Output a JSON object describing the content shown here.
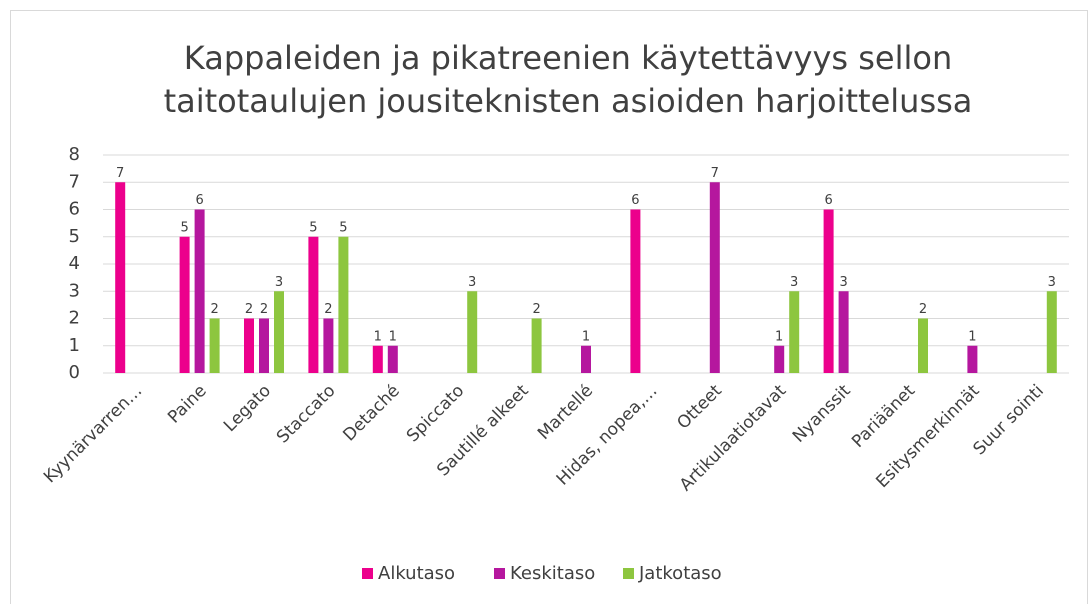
{
  "chart_data": {
    "type": "bar",
    "title": [
      "Kappaleiden ja pikatreenien käytettävyys sellon",
      "taitotaulujen jousiteknisten asioiden harjoittelussa"
    ],
    "categories": [
      "Kyynärvarren…",
      "Paine",
      "Legato",
      "Staccato",
      "Detaché",
      "Spiccato",
      "Sautillé alkeet",
      "Martellé",
      "Hidas, nopea,…",
      "Otteet",
      "Artikulaatiotavat",
      "Nyanssit",
      "Pariäänet",
      "Esitysmerkinnät",
      "Suur sointi"
    ],
    "series": [
      {
        "name": "Alkutaso",
        "color": "#ec008c",
        "values": [
          7,
          5,
          2,
          5,
          1,
          0,
          0,
          0,
          6,
          0,
          0,
          6,
          0,
          0,
          0
        ]
      },
      {
        "name": "Keskitaso",
        "color": "#b5179e",
        "values": [
          0,
          6,
          2,
          2,
          1,
          0,
          0,
          1,
          0,
          7,
          1,
          3,
          0,
          1,
          0
        ]
      },
      {
        "name": "Jatkotaso",
        "color": "#8dc63f",
        "values": [
          0,
          2,
          3,
          5,
          0,
          3,
          2,
          0,
          0,
          0,
          3,
          0,
          2,
          0,
          3
        ]
      }
    ],
    "ylim": [
      0,
      8
    ],
    "yticks": [
      0,
      1,
      2,
      3,
      4,
      5,
      6,
      7,
      8
    ],
    "grid": true,
    "legend": "bottom"
  }
}
